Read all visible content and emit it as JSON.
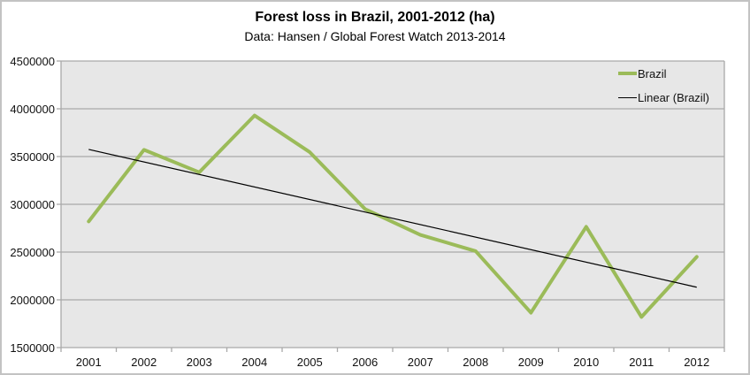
{
  "chart": {
    "title": "Forest loss in Brazil, 2001-2012 (ha)",
    "subtitle": "Data: Hansen / Global Forest Watch 2013-2014",
    "legend": [
      {
        "label": "Brazil",
        "color": "#9BBB59",
        "thickness": 4
      },
      {
        "label": "Linear (Brazil)",
        "color": "#000000",
        "thickness": 1
      }
    ]
  },
  "chart_data": {
    "type": "line",
    "title": "Forest loss in Brazil, 2001-2012 (ha)",
    "subtitle": "Data: Hansen / Global Forest Watch 2013-2014",
    "categories": [
      "2001",
      "2002",
      "2003",
      "2004",
      "2005",
      "2006",
      "2007",
      "2008",
      "2009",
      "2010",
      "2011",
      "2012"
    ],
    "series": [
      {
        "name": "Brazil",
        "color": "#9BBB59",
        "values": [
          2820000,
          3570000,
          3335000,
          3930000,
          3545000,
          2950000,
          2680000,
          2510000,
          1865000,
          2765000,
          1820000,
          2450000
        ]
      },
      {
        "name": "Linear (Brazil)",
        "color": "#000000",
        "derived": "linear-trend-of-Brazil"
      }
    ],
    "xlabel": "",
    "ylabel": "",
    "ylim": [
      1500000,
      4500000
    ],
    "ytick_step": 500000,
    "ytick_labels": [
      "4500000",
      "4000000",
      "3500000",
      "3000000",
      "2500000",
      "2000000",
      "1500000"
    ],
    "grid": "horizontal",
    "legend_position": "top-right-inside",
    "colors": {
      "plot_background": "#E7E7E7",
      "gridline": "#A9A9A9",
      "axis": "#A9A9A9",
      "outer_border": "#C3C3C3",
      "text": "#111111",
      "series_brazil": "#9BBB59",
      "trend_line": "#000000"
    }
  }
}
